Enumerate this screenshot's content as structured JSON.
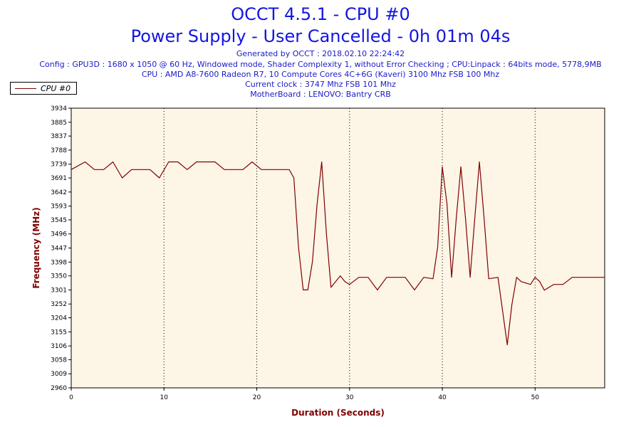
{
  "header": {
    "title": "OCCT 4.5.1 - CPU #0",
    "subtitle": "Power Supply - User Cancelled - 0h 01m 04s",
    "generated": "Generated by OCCT : 2018.02.10 22:24:42",
    "config": "Config : GPU3D : 1680 x 1050 @ 60 Hz, Windowed mode, Shader Complexity 1, without Error Checking ; CPU:Linpack : 64bits mode, 5778,9MB",
    "cpu": "CPU : AMD A8-7600 Radeon R7, 10 Compute Cores 4C+6G (Kaveri) 3100 Mhz FSB 100 Mhz",
    "clock": "Current clock : 3747 Mhz FSB 101 Mhz",
    "motherboard": "MotherBoard : LENOVO: Bantry CRB"
  },
  "legend": {
    "label": "CPU #0",
    "color": "#800000"
  },
  "chart_data": {
    "type": "line",
    "xlabel": "Duration (Seconds)",
    "ylabel": "Frequency (MHz)",
    "xlim": [
      0,
      57.5
    ],
    "ylim": [
      2960,
      3934
    ],
    "x_ticks": [
      0,
      10,
      20,
      30,
      40,
      50
    ],
    "y_ticks": [
      2960,
      3009,
      3058,
      3106,
      3155,
      3204,
      3252,
      3301,
      3350,
      3398,
      3447,
      3496,
      3545,
      3593,
      3642,
      3691,
      3739,
      3788,
      3837,
      3885,
      3934
    ],
    "grid": "vertical dotted",
    "background": "#fdf5e6",
    "line_color": "#800000",
    "series": [
      {
        "name": "CPU #0",
        "x": [
          0,
          1.5,
          2.5,
          3.5,
          4.5,
          5.5,
          6.5,
          7.5,
          8.5,
          9.5,
          10.5,
          11.5,
          12.5,
          13.5,
          14.5,
          15.5,
          16.5,
          17.5,
          18.5,
          19.5,
          20.5,
          21.5,
          22.5,
          23.5,
          24,
          24.5,
          25,
          25.5,
          26,
          26.5,
          27,
          27.5,
          28,
          28.5,
          29,
          29.5,
          30,
          31,
          32,
          33,
          34,
          35,
          36,
          37,
          38,
          39,
          39.5,
          40,
          40.5,
          41,
          41.5,
          42,
          42.5,
          43,
          43.5,
          44,
          44.5,
          45,
          46,
          47,
          47.5,
          48,
          48.5,
          49,
          49.5,
          50,
          50.5,
          51,
          52,
          53,
          54,
          55,
          56,
          57.5
        ],
        "values": [
          3720,
          3747,
          3720,
          3720,
          3747,
          3691,
          3720,
          3720,
          3720,
          3691,
          3747,
          3747,
          3720,
          3747,
          3747,
          3747,
          3720,
          3720,
          3720,
          3747,
          3720,
          3720,
          3720,
          3720,
          3691,
          3450,
          3301,
          3301,
          3400,
          3600,
          3747,
          3500,
          3310,
          3330,
          3350,
          3330,
          3320,
          3345,
          3345,
          3301,
          3345,
          3345,
          3345,
          3301,
          3345,
          3340,
          3450,
          3730,
          3600,
          3345,
          3550,
          3730,
          3550,
          3345,
          3550,
          3747,
          3550,
          3340,
          3345,
          3110,
          3250,
          3345,
          3330,
          3325,
          3320,
          3345,
          3330,
          3300,
          3320,
          3320,
          3345,
          3345,
          3345,
          3345
        ]
      }
    ]
  }
}
